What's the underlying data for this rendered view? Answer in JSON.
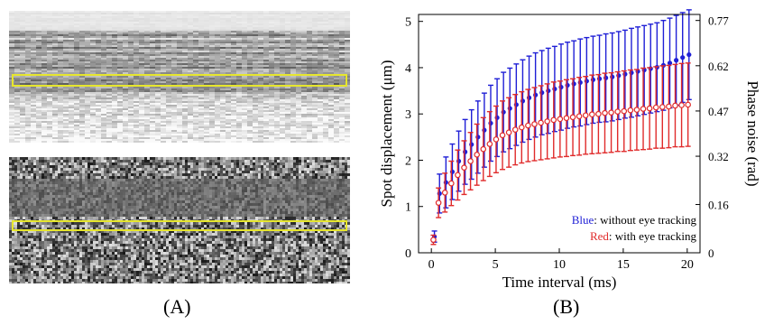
{
  "panel_a": {
    "caption": "(A)",
    "images": [
      {
        "name": "top-oct-intensity-image"
      },
      {
        "name": "bottom-oct-phase-image"
      }
    ],
    "roi_color": "#e6e62e"
  },
  "panel_b": {
    "caption": "(B)"
  },
  "chart_data": {
    "type": "scatter",
    "xlabel": "Time interval (ms)",
    "ylabel": "Spot displacement (μm)",
    "y2label": "Phase noise (rad)",
    "xlim": [
      -1,
      21
    ],
    "ylim": [
      0,
      5.15
    ],
    "y2lim": [
      0,
      0.79
    ],
    "xticks": [
      0,
      5,
      10,
      15,
      20
    ],
    "yticks": [
      0,
      1,
      2,
      3,
      4,
      5
    ],
    "y2ticks": [
      0,
      0.16,
      0.32,
      0.47,
      0.62,
      0.77
    ],
    "y2ticklabels": [
      "0",
      "0.16",
      "0.32",
      "0.47",
      "0.62",
      "0.77"
    ],
    "grid": false,
    "legend": {
      "placement": "bottom-right",
      "entries": [
        {
          "key": "Blue",
          "text": ": without eye tracking",
          "color": "#1f1fd6"
        },
        {
          "key": "Red",
          "text": ":  with eye tracking",
          "color": "#e02b2b"
        }
      ]
    },
    "x": [
      0.2,
      0.6,
      1.1,
      1.6,
      2.1,
      2.6,
      3.1,
      3.6,
      4.1,
      4.6,
      5.1,
      5.6,
      6.1,
      6.6,
      7.1,
      7.6,
      8.1,
      8.6,
      9.1,
      9.6,
      10.1,
      10.6,
      11.1,
      11.6,
      12.1,
      12.6,
      13.1,
      13.6,
      14.1,
      14.6,
      15.1,
      15.6,
      16.1,
      16.6,
      17.1,
      17.6,
      18.1,
      18.6,
      19.1,
      19.6,
      20.1
    ],
    "series": [
      {
        "name": "Blue",
        "color": "#1f1fd6",
        "marker": "filled-circle",
        "y": [
          0.35,
          1.28,
          1.52,
          1.75,
          1.98,
          2.18,
          2.34,
          2.5,
          2.65,
          2.8,
          2.92,
          3.04,
          3.12,
          3.2,
          3.28,
          3.35,
          3.41,
          3.46,
          3.5,
          3.54,
          3.58,
          3.62,
          3.65,
          3.68,
          3.71,
          3.74,
          3.76,
          3.78,
          3.8,
          3.83,
          3.86,
          3.89,
          3.92,
          3.95,
          3.98,
          4.01,
          4.05,
          4.1,
          4.16,
          4.22,
          4.28
        ],
        "err": [
          0.12,
          0.42,
          0.55,
          0.6,
          0.65,
          0.7,
          0.75,
          0.78,
          0.8,
          0.82,
          0.84,
          0.86,
          0.87,
          0.88,
          0.89,
          0.9,
          0.91,
          0.91,
          0.92,
          0.92,
          0.93,
          0.93,
          0.93,
          0.94,
          0.94,
          0.94,
          0.94,
          0.95,
          0.95,
          0.95,
          0.95,
          0.96,
          0.96,
          0.96,
          0.96,
          0.96,
          0.97,
          0.97,
          0.97,
          0.97,
          0.97
        ]
      },
      {
        "name": "Red",
        "color": "#e02b2b",
        "marker": "open-circle",
        "y": [
          0.28,
          1.08,
          1.3,
          1.5,
          1.68,
          1.84,
          1.98,
          2.12,
          2.24,
          2.35,
          2.45,
          2.54,
          2.6,
          2.66,
          2.71,
          2.75,
          2.78,
          2.81,
          2.84,
          2.87,
          2.89,
          2.91,
          2.93,
          2.95,
          2.97,
          2.99,
          3.0,
          3.02,
          3.03,
          3.05,
          3.06,
          3.08,
          3.09,
          3.11,
          3.12,
          3.14,
          3.15,
          3.16,
          3.18,
          3.19,
          3.2
        ],
        "err": [
          0.1,
          0.32,
          0.42,
          0.48,
          0.54,
          0.58,
          0.62,
          0.66,
          0.68,
          0.7,
          0.72,
          0.74,
          0.75,
          0.76,
          0.77,
          0.78,
          0.79,
          0.8,
          0.81,
          0.82,
          0.82,
          0.83,
          0.83,
          0.84,
          0.84,
          0.85,
          0.85,
          0.86,
          0.86,
          0.86,
          0.87,
          0.87,
          0.87,
          0.88,
          0.88,
          0.88,
          0.89,
          0.89,
          0.89,
          0.9,
          0.9
        ]
      }
    ]
  }
}
